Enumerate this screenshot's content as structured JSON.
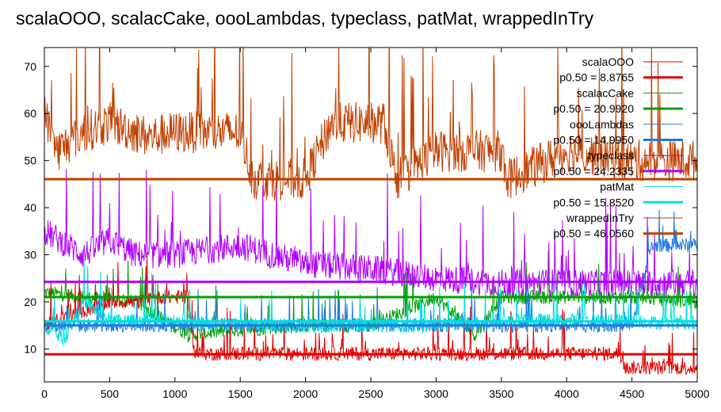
{
  "chart_data": {
    "type": "line",
    "title": "scalaOOO, scalacCake, oooLambdas, typeclass, patMat, wrappedInTry",
    "xlabel": "",
    "ylabel": "",
    "xlim": [
      0,
      5000
    ],
    "ylim": [
      3,
      74
    ],
    "x_ticks": [
      0,
      500,
      1000,
      1500,
      2000,
      2500,
      3000,
      3500,
      4000,
      4500,
      5000
    ],
    "y_ticks": [
      10,
      20,
      30,
      40,
      50,
      60,
      70
    ],
    "grid": false,
    "legend_position": "top-right",
    "series": [
      {
        "name": "scalaOOO",
        "color": "#e00000",
        "median_label": "p0.50 = 8.8765",
        "median": 8.8765,
        "x": [
          0,
          300,
          500,
          700,
          900,
          1100,
          1150,
          1500,
          2000,
          2500,
          3000,
          3500,
          4000,
          4400,
          4450,
          5000
        ],
        "y": [
          15,
          18,
          20,
          20,
          21,
          21,
          9,
          9,
          9,
          9,
          9,
          9,
          9,
          9,
          6,
          6
        ]
      },
      {
        "name": "scalacCake",
        "color": "#00a000",
        "median_label": "p0.50 = 20.9920",
        "median": 20.992,
        "x": [
          0,
          300,
          700,
          1100,
          1500,
          2000,
          2500,
          3000,
          3300,
          3500,
          4000,
          4500,
          5000
        ],
        "y": [
          22,
          21,
          20,
          13,
          14,
          15,
          15,
          21,
          13,
          21,
          21,
          21,
          20
        ]
      },
      {
        "name": "oooLambdas",
        "color": "#1e7be0",
        "median_label": "p0.50 = 14.9950",
        "median": 14.995,
        "x": [
          0,
          500,
          1000,
          1500,
          2000,
          2500,
          3000,
          3500,
          4000,
          4500,
          4650,
          5000
        ],
        "y": [
          15,
          15,
          15,
          15,
          15,
          15,
          15,
          15,
          15,
          15,
          32,
          32
        ]
      },
      {
        "name": "typeclass",
        "color": "#b000ff",
        "median_label": "p0.50 = 24.2335",
        "median": 24.2335,
        "x": [
          0,
          300,
          500,
          700,
          1000,
          1500,
          2000,
          2500,
          3000,
          3500,
          4000,
          4500,
          5000
        ],
        "y": [
          35,
          30,
          33,
          30,
          30,
          32,
          28,
          27,
          25,
          24,
          24,
          24,
          24
        ]
      },
      {
        "name": "patMat",
        "color": "#00dede",
        "median_label": "p0.50 = 15.8520",
        "median": 15.852,
        "x": [
          0,
          150,
          300,
          500,
          1000,
          1500,
          2000,
          2500,
          3000,
          3500,
          4000,
          4500,
          5000
        ],
        "y": [
          15,
          12,
          20,
          16,
          16,
          15,
          15,
          15,
          15,
          16,
          16,
          16,
          15
        ]
      },
      {
        "name": "wrappedInTry",
        "color": "#c04000",
        "median_label": "p0.50 = 46.0560",
        "median": 46.056,
        "x": [
          0,
          100,
          300,
          500,
          800,
          1000,
          1500,
          1600,
          2000,
          2200,
          2600,
          2700,
          3000,
          3500,
          3550,
          4000,
          4500,
          5000
        ],
        "y": [
          60,
          52,
          56,
          58,
          55,
          56,
          56,
          46,
          46,
          58,
          58,
          46,
          52,
          52,
          46,
          52,
          50,
          50
        ]
      }
    ]
  }
}
